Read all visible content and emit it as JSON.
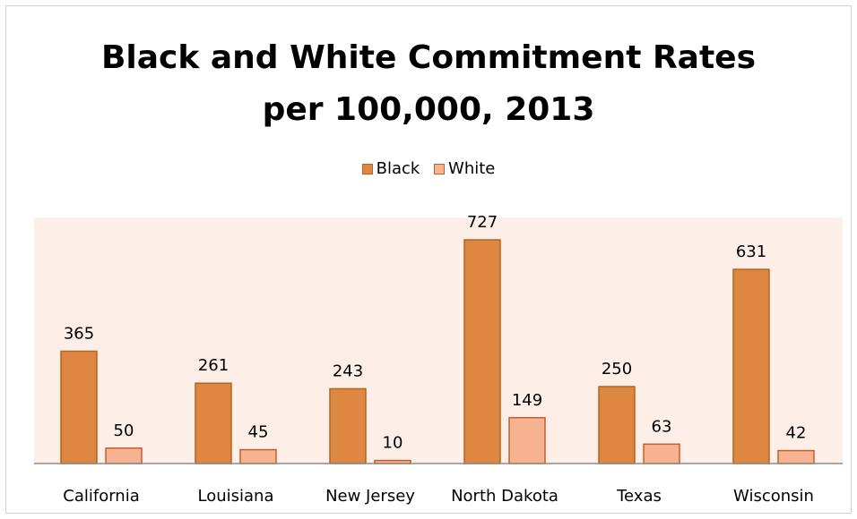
{
  "chart_data": {
    "type": "bar",
    "title_line1": "Black and White Commitment Rates",
    "title_line2": "per 100,000, 2013",
    "categories": [
      "California",
      "Louisiana",
      "New Jersey",
      "North Dakota",
      "Texas",
      "Wisconsin"
    ],
    "series": [
      {
        "name": "Black",
        "values": [
          365,
          261,
          243,
          727,
          250,
          631
        ],
        "color": "#de8742",
        "stroke": "#b5651d"
      },
      {
        "name": "White",
        "values": [
          50,
          45,
          10,
          149,
          63,
          42
        ],
        "color": "#f7b391",
        "stroke": "#c0612a"
      }
    ],
    "ylim": [
      0,
      800
    ],
    "data_labels": true,
    "legend_position": "top",
    "plot_background": "#fdeee8",
    "grid": false
  }
}
